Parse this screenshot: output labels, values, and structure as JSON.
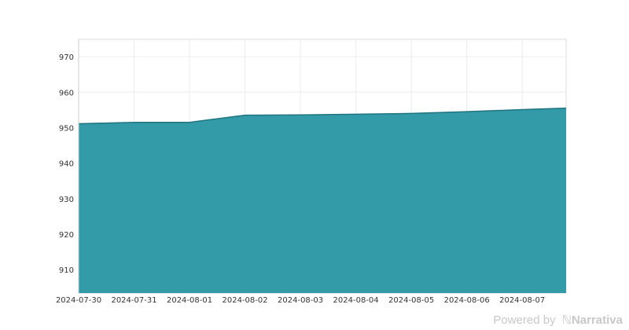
{
  "chart_data": {
    "type": "area",
    "title": "",
    "xlabel": "",
    "ylabel": "",
    "x": [
      "2024-07-30",
      "2024-07-31",
      "2024-08-01",
      "2024-08-02",
      "2024-08-03",
      "2024-08-04",
      "2024-08-05",
      "2024-08-06",
      "2024-08-07",
      "2024-08-07T19:00"
    ],
    "values": [
      951.1,
      951.5,
      951.5,
      953.5,
      953.6,
      953.8,
      954.0,
      954.5,
      955.1,
      955.5
    ],
    "x_ticks": [
      "2024-07-30",
      "2024-07-31",
      "2024-08-01",
      "2024-08-02",
      "2024-08-03",
      "2024-08-04",
      "2024-08-05",
      "2024-08-06",
      "2024-08-07"
    ],
    "y_ticks": [
      910,
      920,
      930,
      940,
      950,
      960,
      970
    ],
    "ylim": [
      903.4,
      974.9
    ],
    "xlim": [
      "2024-07-30",
      "2024-08-07T19:00"
    ],
    "grid": true,
    "colors": {
      "fill": "#339aa8",
      "line": "#1f7480"
    }
  },
  "footer": {
    "powered_by": "Powered by",
    "brand": "Narrativa"
  }
}
